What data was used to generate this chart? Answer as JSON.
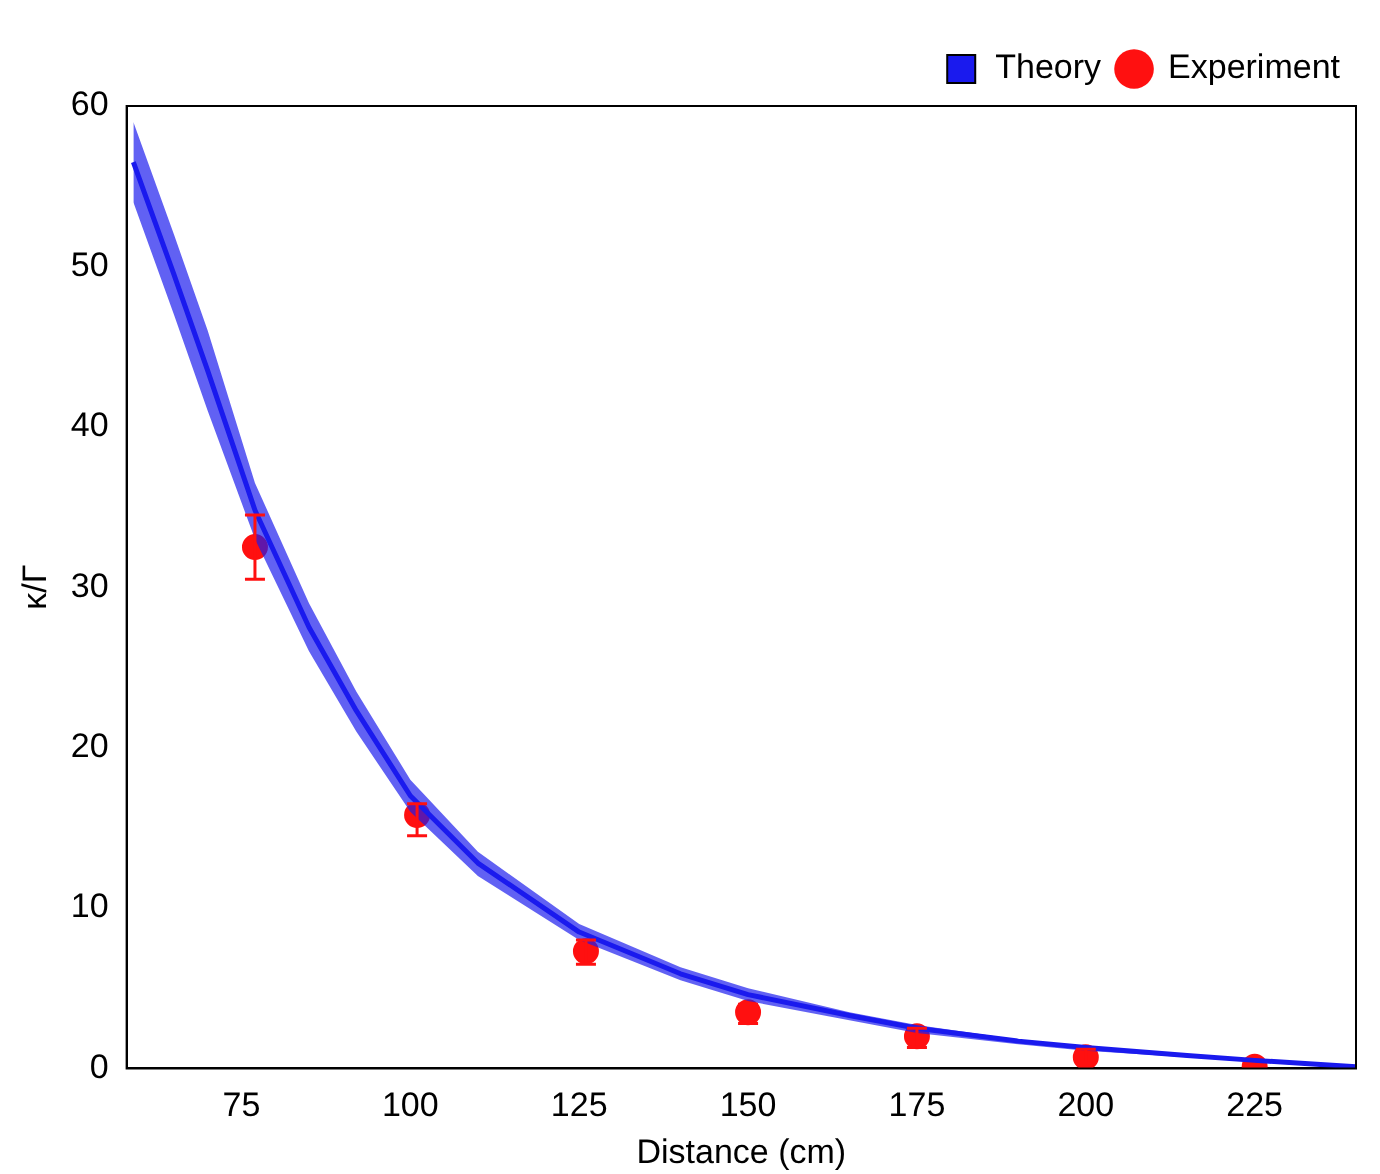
{
  "chart_data": {
    "type": "line",
    "xlabel": "Distance (cm)",
    "ylabel": "κ/Γ",
    "xlim": [
      58,
      240
    ],
    "xticks": [
      75,
      100,
      125,
      150,
      175,
      200,
      225
    ],
    "ylim": [
      0,
      60
    ],
    "yticks": [
      0,
      10,
      20,
      30,
      40,
      50,
      60
    ],
    "grid": false,
    "legend": "top right",
    "series": [
      {
        "name": "Theory",
        "color": "#1a1aee",
        "x": [
          59,
          65,
          70,
          77,
          85,
          92,
          100,
          110,
          125,
          140,
          150,
          165,
          175,
          190,
          200,
          215,
          225,
          240
        ],
        "lower": [
          54,
          47,
          41,
          33,
          26,
          21,
          16,
          12,
          8,
          5.5,
          4.2,
          3,
          2.2,
          1.5,
          1.1,
          0.7,
          0.4,
          0
        ],
        "upper": [
          59,
          52,
          46,
          36.5,
          29,
          23.5,
          18,
          13.5,
          9,
          6.3,
          5,
          3.5,
          2.7,
          1.8,
          1.4,
          0.9,
          0.6,
          0.2
        ],
        "values": [
          56.5,
          49.5,
          43.5,
          34.8,
          27.5,
          22.3,
          17,
          12.8,
          8.5,
          5.9,
          4.6,
          3.3,
          2.5,
          1.7,
          1.3,
          0.8,
          0.5,
          0.1
        ]
      },
      {
        "name": "Experiment",
        "type": "scatter",
        "marker": "circle",
        "color": "#ff1010",
        "x": [
          77,
          101,
          126,
          150,
          175,
          200,
          225
        ],
        "values": [
          32.5,
          15.8,
          7.3,
          3.5,
          2,
          0.7,
          0.1
        ],
        "errors": [
          [
            30.5,
            34.5
          ],
          [
            14.5,
            16.5
          ],
          [
            6.5,
            8
          ],
          [
            2.8,
            4
          ],
          [
            1.3,
            2.5
          ],
          [
            0.3,
            1.2
          ],
          null
        ]
      }
    ]
  }
}
